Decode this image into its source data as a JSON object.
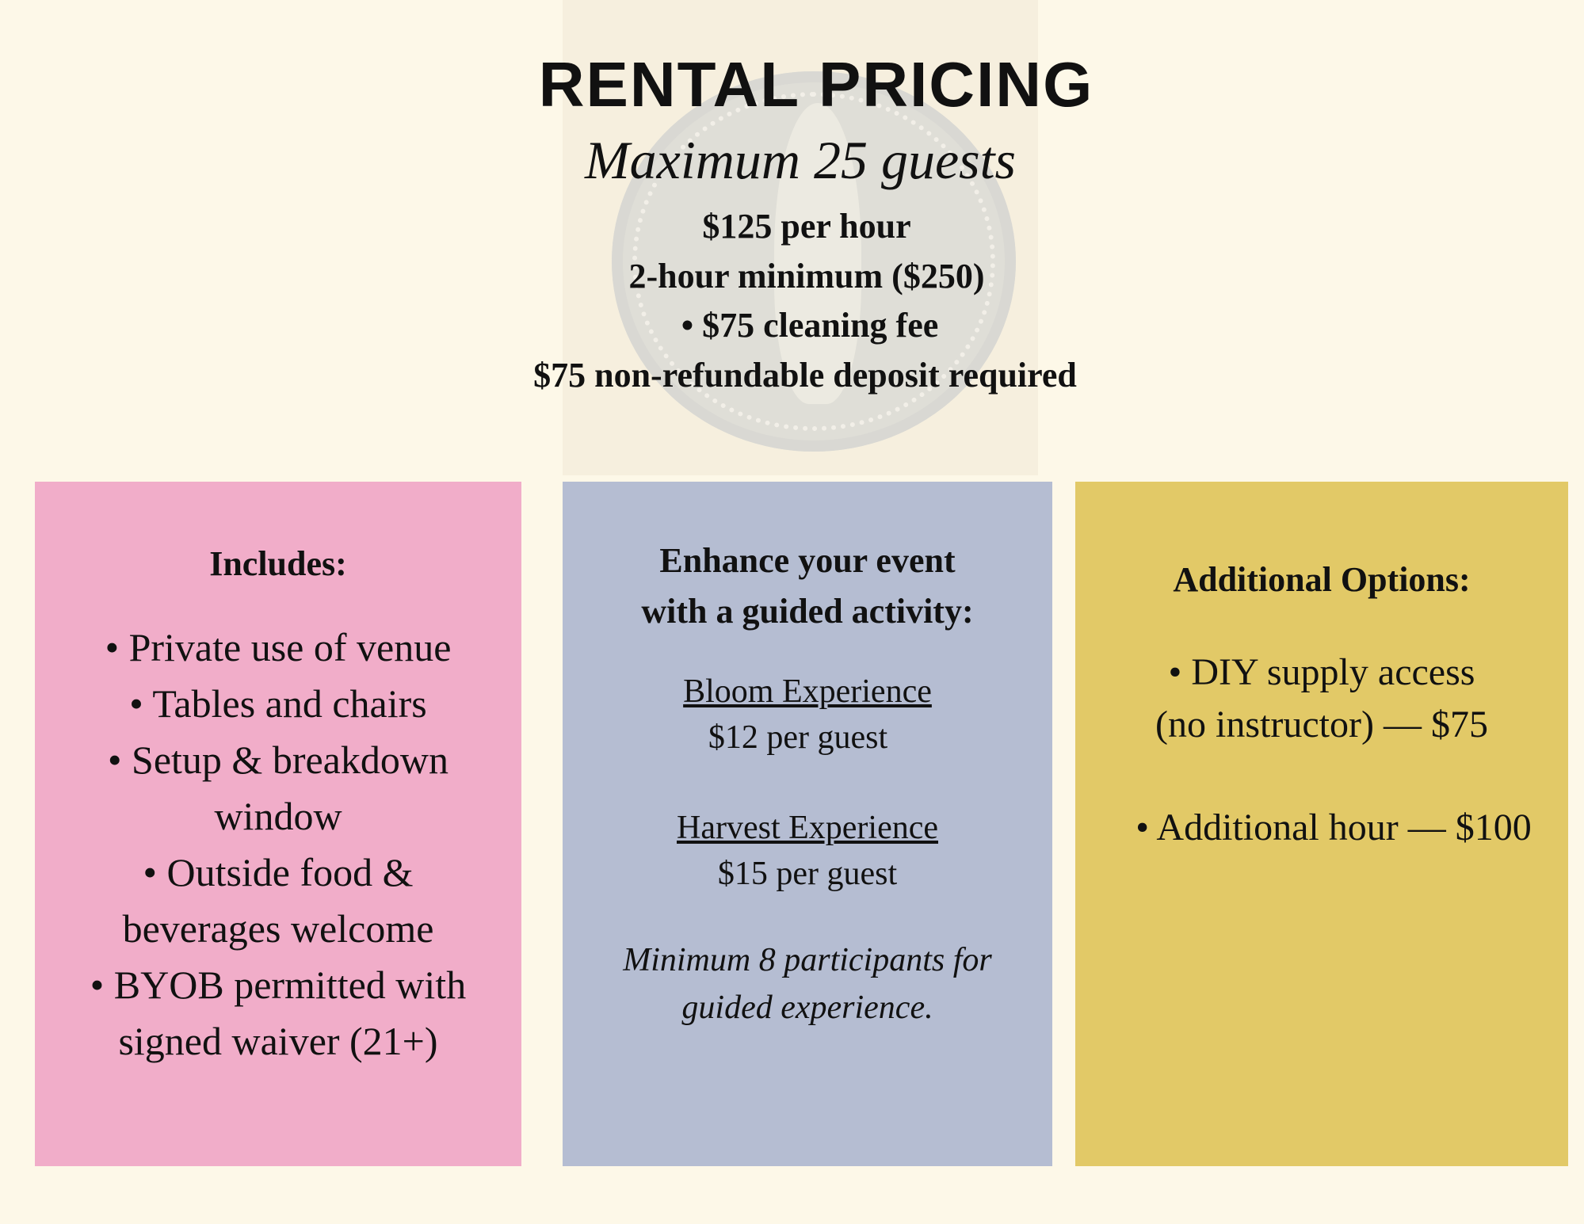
{
  "header": {
    "title": "RENTAL PRICING",
    "subtitle": "Maximum 25 guests",
    "price_lines": [
      "$125 per hour",
      "2-hour minimum ($250)",
      "• $75 cleaning fee",
      "$75 non-refundable deposit required"
    ]
  },
  "includes": {
    "heading": "Includes:",
    "lines": [
      "• Private use of venue",
      "• Tables and chairs",
      "• Setup & breakdown",
      "window",
      "• Outside food &",
      "beverages welcome",
      "• BYOB permitted with",
      "signed waiver (21+)"
    ]
  },
  "activity": {
    "heading_line1": "Enhance your event",
    "heading_line2": "with a guided activity:",
    "experiences": [
      {
        "name": "Bloom Experience",
        "price": "$12 per guest"
      },
      {
        "name": "Harvest Experience",
        "price": "$15 per guest"
      }
    ],
    "note_line1": "Minimum 8 participants for",
    "note_line2": "guided experience."
  },
  "options": {
    "heading": "Additional Options:",
    "lines": [
      "• DIY supply access",
      "(no instructor) — $75",
      "• Additional hour — $100"
    ]
  },
  "colors": {
    "background": "#fdf8e8",
    "includes_panel": "#f1adc9",
    "activity_panel": "#b5bdd2",
    "options_panel": "#e2c967"
  }
}
